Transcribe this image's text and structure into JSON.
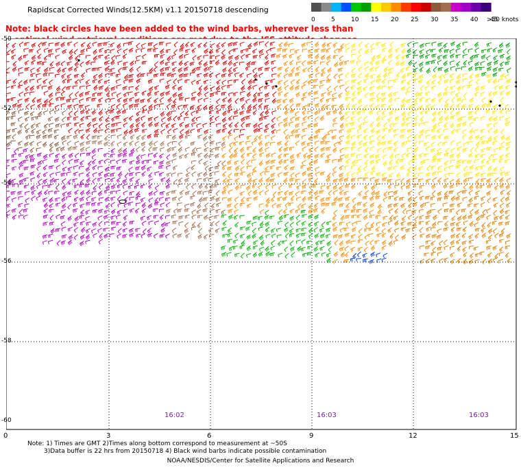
{
  "title": "Rapidscat Corrected Winds(12.5KM) v1.1 20150718 descending",
  "note": {
    "line1": "Note: black circles have been added to the wind barbs, wherever less than",
    "line2": "optimal wind retrieval conditions are met due to the ISS attitude changes."
  },
  "legend": {
    "colors": [
      "#505050",
      "#8a8a8a",
      "#00b4ff",
      "#0050ff",
      "#00c800",
      "#00a000",
      "#ffff00",
      "#ffc800",
      "#ff8c00",
      "#ff3c00",
      "#ff0000",
      "#c80000",
      "#8c5a3c",
      "#a06e50",
      "#c800c8",
      "#a000c8",
      "#6e00aa",
      "#3c0078"
    ],
    "ticks": [
      "0",
      "5",
      "10",
      "15",
      "20",
      "25",
      "30",
      "35",
      "40",
      "45",
      ">50 knots"
    ]
  },
  "axes": {
    "y_ticks": [
      "-50",
      "-52",
      "-54",
      "-56",
      "-58",
      "-60"
    ],
    "x_ticks": [
      "0",
      "3",
      "6",
      "9",
      "12",
      "15"
    ]
  },
  "times": [
    "16:02",
    "16:03",
    "16:03"
  ],
  "footnotes": {
    "line1": "Note: 1) Times are GMT 2)Times along bottom correspond to measurement at ~50S",
    "line2": "3)Data buffer is 22 hrs from 20150718 4) Black wind barbs indicate possible contamination"
  },
  "credit": "NOAA/NESDIS/Center for Satellite Applications and Research"
}
